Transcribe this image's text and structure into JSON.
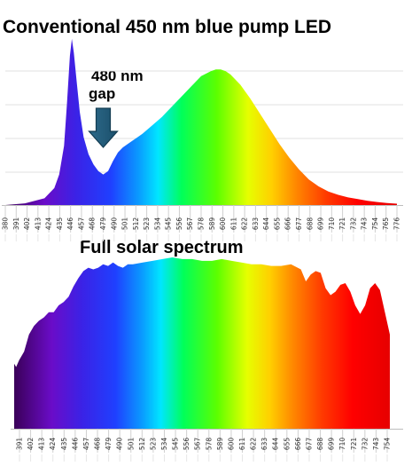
{
  "chart_data": [
    {
      "type": "area",
      "title": "Conventional 450 nm blue pump LED",
      "xlabel": "",
      "ylabel": "",
      "x_ticks": [
        "380",
        "391",
        "402",
        "413",
        "424",
        "435",
        "446",
        "457",
        "468",
        "479",
        "490",
        "501",
        "512",
        "523",
        "534",
        "545",
        "556",
        "567",
        "578",
        "589",
        "600",
        "611",
        "622",
        "633",
        "644",
        "655",
        "666",
        "677",
        "688",
        "699",
        "710",
        "721",
        "732",
        "743",
        "754",
        "765",
        "776"
      ],
      "xlim": [
        380,
        780
      ],
      "ylim": [
        0,
        1
      ],
      "grid": true,
      "annotation": {
        "text_line1": "480 nm",
        "text_line2": "gap",
        "target_x": 480
      },
      "series": [
        {
          "x": [
            380,
            400,
            420,
            430,
            435,
            440,
            443,
            446,
            448,
            450,
            453,
            456,
            460,
            465,
            470,
            475,
            480,
            485,
            490,
            495,
            500,
            505,
            510,
            515,
            520,
            530,
            540,
            550,
            560,
            570,
            580,
            590,
            595,
            600,
            605,
            610,
            620,
            630,
            640,
            650,
            660,
            670,
            680,
            690,
            700,
            710,
            720,
            730,
            740,
            750,
            760,
            770,
            780
          ],
          "y": [
            0.0,
            0.01,
            0.04,
            0.1,
            0.18,
            0.35,
            0.6,
            0.88,
            0.98,
            0.9,
            0.72,
            0.55,
            0.4,
            0.3,
            0.24,
            0.2,
            0.18,
            0.2,
            0.26,
            0.31,
            0.34,
            0.36,
            0.38,
            0.4,
            0.42,
            0.47,
            0.52,
            0.58,
            0.64,
            0.7,
            0.76,
            0.79,
            0.8,
            0.8,
            0.79,
            0.77,
            0.71,
            0.63,
            0.54,
            0.45,
            0.36,
            0.28,
            0.21,
            0.15,
            0.11,
            0.08,
            0.06,
            0.045,
            0.035,
            0.025,
            0.018,
            0.012,
            0.008
          ]
        }
      ]
    },
    {
      "type": "area",
      "title": "Full solar spectrum",
      "xlabel": "",
      "ylabel": "",
      "x_ticks": [
        "391",
        "402",
        "413",
        "424",
        "435",
        "446",
        "457",
        "468",
        "479",
        "490",
        "501",
        "512",
        "523",
        "534",
        "545",
        "556",
        "567",
        "578",
        "589",
        "600",
        "611",
        "622",
        "633",
        "644",
        "655",
        "666",
        "677",
        "688",
        "699",
        "710",
        "721",
        "732",
        "743",
        "754"
      ],
      "xlim": [
        380,
        760
      ],
      "ylim": [
        0,
        1
      ],
      "grid": true,
      "series": [
        {
          "x": [
            380,
            382,
            385,
            390,
            395,
            400,
            405,
            410,
            415,
            420,
            425,
            430,
            435,
            440,
            445,
            450,
            455,
            460,
            465,
            470,
            475,
            480,
            485,
            490,
            495,
            500,
            510,
            520,
            530,
            540,
            550,
            560,
            570,
            580,
            590,
            600,
            610,
            620,
            630,
            640,
            650,
            660,
            670,
            675,
            680,
            685,
            690,
            695,
            700,
            705,
            710,
            715,
            720,
            725,
            730,
            735,
            740,
            745,
            750,
            755,
            760
          ],
          "y": [
            0.38,
            0.36,
            0.4,
            0.45,
            0.55,
            0.6,
            0.63,
            0.65,
            0.68,
            0.68,
            0.72,
            0.74,
            0.77,
            0.83,
            0.88,
            0.92,
            0.94,
            0.93,
            0.94,
            0.96,
            0.95,
            0.97,
            0.95,
            0.94,
            0.96,
            0.96,
            0.97,
            0.98,
            0.99,
            1.0,
            0.99,
            0.99,
            0.98,
            0.98,
            0.99,
            0.98,
            0.97,
            0.96,
            0.96,
            0.95,
            0.95,
            0.96,
            0.93,
            0.86,
            0.9,
            0.92,
            0.91,
            0.82,
            0.78,
            0.8,
            0.84,
            0.85,
            0.8,
            0.72,
            0.67,
            0.72,
            0.82,
            0.85,
            0.81,
            0.68,
            0.55
          ]
        }
      ]
    }
  ]
}
